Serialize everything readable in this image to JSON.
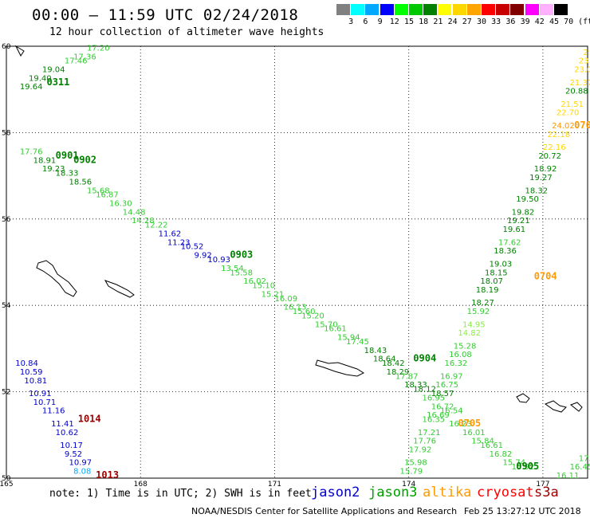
{
  "header": {
    "title": "00:00 – 11:59 UTC 02/24/2018",
    "subtitle": "12 hour collection of altimeter wave heights"
  },
  "colorbar": {
    "unit": "(ft)",
    "bins": [
      {
        "label": "3",
        "color": "#808080"
      },
      {
        "label": "6",
        "color": "#00ffff"
      },
      {
        "label": "9",
        "color": "#00a8ff"
      },
      {
        "label": "12",
        "color": "#0000ff"
      },
      {
        "label": "15",
        "color": "#00ff00"
      },
      {
        "label": "18",
        "color": "#00c800"
      },
      {
        "label": "21",
        "color": "#008000"
      },
      {
        "label": "24",
        "color": "#ffff00"
      },
      {
        "label": "27",
        "color": "#ffd700"
      },
      {
        "label": "30",
        "color": "#ffa500"
      },
      {
        "label": "33",
        "color": "#ff0000"
      },
      {
        "label": "36",
        "color": "#c80000"
      },
      {
        "label": "39",
        "color": "#800000"
      },
      {
        "label": "42",
        "color": "#ff00ff"
      },
      {
        "label": "45",
        "color": "#ffb0ff"
      },
      {
        "label": "70",
        "color": "#000000"
      }
    ]
  },
  "map": {
    "lon_range": [
      165,
      178
    ],
    "lat_range": [
      50,
      60
    ],
    "lon_ticks": [
      "165",
      "168",
      "171",
      "174",
      "177"
    ],
    "lat_ticks": [
      "60",
      "58",
      "56",
      "54",
      "52",
      "50"
    ]
  },
  "colors": {
    "jason2": "#0000cc",
    "jason3": "#00a000",
    "altika": "#ff9900",
    "cryosat": "#ff0000",
    "s3a": "#990000",
    "greenlight": "#33cc33",
    "yellow": "#ffd700",
    "cyan": "#00a8ff"
  },
  "passes": [
    {
      "id": "0311",
      "color": "#008000",
      "lon": 165.9,
      "lat": 59.1
    },
    {
      "id": "0901",
      "color": "#008000",
      "lon": 166.1,
      "lat": 57.4
    },
    {
      "id": "0902",
      "color": "#008000",
      "lon": 166.5,
      "lat": 57.3
    },
    {
      "id": "0903",
      "color": "#008000",
      "lon": 170.0,
      "lat": 55.1
    },
    {
      "id": "0904",
      "color": "#008000",
      "lon": 174.1,
      "lat": 52.7
    },
    {
      "id": "0705",
      "color": "#ff9900",
      "lon": 175.1,
      "lat": 51.2
    },
    {
      "id": "0905",
      "color": "#008000",
      "lon": 176.4,
      "lat": 50.2
    },
    {
      "id": "0704",
      "color": "#ff9900",
      "lon": 176.8,
      "lat": 54.6
    },
    {
      "id": "070",
      "color": "#ff9900",
      "lon": 177.7,
      "lat": 58.1
    },
    {
      "id": "1014",
      "color": "#990000",
      "lon": 166.6,
      "lat": 51.3
    },
    {
      "id": "1013",
      "color": "#990000",
      "lon": 167.0,
      "lat": 50.0
    }
  ],
  "observations": [
    {
      "v": "17.20",
      "lon": 166.8,
      "lat": 59.9,
      "c": "#33cc33"
    },
    {
      "v": "17.36",
      "lon": 166.5,
      "lat": 59.7,
      "c": "#33cc33"
    },
    {
      "v": "17.46",
      "lon": 166.3,
      "lat": 59.6,
      "c": "#33cc33"
    },
    {
      "v": "19.04",
      "lon": 165.8,
      "lat": 59.4,
      "c": "#008000"
    },
    {
      "v": "19.40",
      "lon": 165.5,
      "lat": 59.2,
      "c": "#008000"
    },
    {
      "v": "19.64",
      "lon": 165.3,
      "lat": 59.0,
      "c": "#008000"
    },
    {
      "v": "17.76",
      "lon": 165.3,
      "lat": 57.5,
      "c": "#33cc33"
    },
    {
      "v": "18.91",
      "lon": 165.6,
      "lat": 57.3,
      "c": "#008000"
    },
    {
      "v": "19.23",
      "lon": 165.8,
      "lat": 57.1,
      "c": "#008000"
    },
    {
      "v": "18.33",
      "lon": 166.1,
      "lat": 57.0,
      "c": "#008000"
    },
    {
      "v": "18.56",
      "lon": 166.4,
      "lat": 56.8,
      "c": "#008000"
    },
    {
      "v": "15.68",
      "lon": 166.8,
      "lat": 56.6,
      "c": "#33cc33"
    },
    {
      "v": "16.87",
      "lon": 167.0,
      "lat": 56.5,
      "c": "#33cc33"
    },
    {
      "v": "16.30",
      "lon": 167.3,
      "lat": 56.3,
      "c": "#33cc33"
    },
    {
      "v": "14.48",
      "lon": 167.6,
      "lat": 56.1,
      "c": "#33cc33"
    },
    {
      "v": "14.28",
      "lon": 167.8,
      "lat": 55.9,
      "c": "#33cc33"
    },
    {
      "v": "12.22",
      "lon": 168.1,
      "lat": 55.8,
      "c": "#33cc33"
    },
    {
      "v": "11.62",
      "lon": 168.4,
      "lat": 55.6,
      "c": "#0000cc"
    },
    {
      "v": "11.23",
      "lon": 168.6,
      "lat": 55.4,
      "c": "#0000cc"
    },
    {
      "v": "10.52",
      "lon": 168.9,
      "lat": 55.3,
      "c": "#0000cc"
    },
    {
      "v": "9.92",
      "lon": 169.2,
      "lat": 55.1,
      "c": "#0000cc"
    },
    {
      "v": "10.93",
      "lon": 169.5,
      "lat": 55.0,
      "c": "#0000cc"
    },
    {
      "v": "13.54",
      "lon": 169.8,
      "lat": 54.8,
      "c": "#33cc33"
    },
    {
      "v": "15.58",
      "lon": 170.0,
      "lat": 54.7,
      "c": "#33cc33"
    },
    {
      "v": "16.02",
      "lon": 170.3,
      "lat": 54.5,
      "c": "#33cc33"
    },
    {
      "v": "15.10",
      "lon": 170.5,
      "lat": 54.4,
      "c": "#33cc33"
    },
    {
      "v": "15.21",
      "lon": 170.7,
      "lat": 54.2,
      "c": "#33cc33"
    },
    {
      "v": "16.09",
      "lon": 171.0,
      "lat": 54.1,
      "c": "#33cc33"
    },
    {
      "v": "16.13",
      "lon": 171.2,
      "lat": 53.9,
      "c": "#33cc33"
    },
    {
      "v": "15.60",
      "lon": 171.4,
      "lat": 53.8,
      "c": "#33cc33"
    },
    {
      "v": "15.20",
      "lon": 171.6,
      "lat": 53.7,
      "c": "#33cc33"
    },
    {
      "v": "15.70",
      "lon": 171.9,
      "lat": 53.5,
      "c": "#33cc33"
    },
    {
      "v": "16.61",
      "lon": 172.1,
      "lat": 53.4,
      "c": "#33cc33"
    },
    {
      "v": "15.94",
      "lon": 172.4,
      "lat": 53.2,
      "c": "#33cc33"
    },
    {
      "v": "17.45",
      "lon": 172.6,
      "lat": 53.1,
      "c": "#33cc33"
    },
    {
      "v": "18.43",
      "lon": 173.0,
      "lat": 52.9,
      "c": "#008000"
    },
    {
      "v": "18.64",
      "lon": 173.2,
      "lat": 52.7,
      "c": "#008000"
    },
    {
      "v": "18.42",
      "lon": 173.4,
      "lat": 52.6,
      "c": "#008000"
    },
    {
      "v": "18.29",
      "lon": 173.5,
      "lat": 52.4,
      "c": "#008000"
    },
    {
      "v": "17.87",
      "lon": 173.7,
      "lat": 52.3,
      "c": "#33cc33"
    },
    {
      "v": "18.33",
      "lon": 173.9,
      "lat": 52.1,
      "c": "#008000"
    },
    {
      "v": "18.12",
      "lon": 174.1,
      "lat": 52.0,
      "c": "#008000"
    },
    {
      "v": "16.95",
      "lon": 174.3,
      "lat": 51.8,
      "c": "#33cc33"
    },
    {
      "v": "16.72",
      "lon": 174.5,
      "lat": 51.6,
      "c": "#33cc33"
    },
    {
      "v": "16.54",
      "lon": 174.7,
      "lat": 51.5,
      "c": "#33cc33"
    },
    {
      "v": "16.23",
      "lon": 174.9,
      "lat": 51.2,
      "c": "#33cc33"
    },
    {
      "v": "16.01",
      "lon": 175.2,
      "lat": 51.0,
      "c": "#33cc33"
    },
    {
      "v": "15.84",
      "lon": 175.4,
      "lat": 50.8,
      "c": "#33cc33"
    },
    {
      "v": "16.61",
      "lon": 175.6,
      "lat": 50.7,
      "c": "#33cc33"
    },
    {
      "v": "16.82",
      "lon": 175.8,
      "lat": 50.5,
      "c": "#33cc33"
    },
    {
      "v": "15.74",
      "lon": 176.1,
      "lat": 50.3,
      "c": "#33cc33"
    },
    {
      "v": "15.92",
      "lon": 176.3,
      "lat": 50.2,
      "c": "#33cc33"
    },
    {
      "v": "15.79",
      "lon": 173.8,
      "lat": 50.1,
      "c": "#33cc33"
    },
    {
      "v": "15.98",
      "lon": 173.9,
      "lat": 50.3,
      "c": "#33cc33"
    },
    {
      "v": "17.92",
      "lon": 174.0,
      "lat": 50.6,
      "c": "#33cc33"
    },
    {
      "v": "17.76",
      "lon": 174.1,
      "lat": 50.8,
      "c": "#33cc33"
    },
    {
      "v": "17.21",
      "lon": 174.2,
      "lat": 51.0,
      "c": "#33cc33"
    },
    {
      "v": "16.35",
      "lon": 174.3,
      "lat": 51.3,
      "c": "#33cc33"
    },
    {
      "v": "16.69",
      "lon": 174.4,
      "lat": 51.4,
      "c": "#33cc33"
    },
    {
      "v": "18.57",
      "lon": 174.5,
      "lat": 51.9,
      "c": "#008000"
    },
    {
      "v": "16.75",
      "lon": 174.6,
      "lat": 52.1,
      "c": "#33cc33"
    },
    {
      "v": "16.97",
      "lon": 174.7,
      "lat": 52.3,
      "c": "#33cc33"
    },
    {
      "v": "16.32",
      "lon": 174.8,
      "lat": 52.6,
      "c": "#33cc33"
    },
    {
      "v": "16.08",
      "lon": 174.9,
      "lat": 52.8,
      "c": "#33cc33"
    },
    {
      "v": "15.28",
      "lon": 175.0,
      "lat": 53.0,
      "c": "#33cc33"
    },
    {
      "v": "14.82",
      "lon": 175.1,
      "lat": 53.3,
      "c": "#88ee44"
    },
    {
      "v": "14.95",
      "lon": 175.2,
      "lat": 53.5,
      "c": "#88ee44"
    },
    {
      "v": "15.92",
      "lon": 175.3,
      "lat": 53.8,
      "c": "#33cc33"
    },
    {
      "v": "18.27",
      "lon": 175.4,
      "lat": 54.0,
      "c": "#008000"
    },
    {
      "v": "18.19",
      "lon": 175.5,
      "lat": 54.3,
      "c": "#008000"
    },
    {
      "v": "18.07",
      "lon": 175.6,
      "lat": 54.5,
      "c": "#008000"
    },
    {
      "v": "18.15",
      "lon": 175.7,
      "lat": 54.7,
      "c": "#008000"
    },
    {
      "v": "19.03",
      "lon": 175.8,
      "lat": 54.9,
      "c": "#008000"
    },
    {
      "v": "18.36",
      "lon": 175.9,
      "lat": 55.2,
      "c": "#008000"
    },
    {
      "v": "17.62",
      "lon": 176.0,
      "lat": 55.4,
      "c": "#33cc33"
    },
    {
      "v": "19.61",
      "lon": 176.1,
      "lat": 55.7,
      "c": "#008000"
    },
    {
      "v": "19.21",
      "lon": 176.2,
      "lat": 55.9,
      "c": "#008000"
    },
    {
      "v": "19.82",
      "lon": 176.3,
      "lat": 56.1,
      "c": "#008000"
    },
    {
      "v": "19.50",
      "lon": 176.4,
      "lat": 56.4,
      "c": "#008000"
    },
    {
      "v": "18.32",
      "lon": 176.6,
      "lat": 56.6,
      "c": "#008000"
    },
    {
      "v": "19.27",
      "lon": 176.7,
      "lat": 56.9,
      "c": "#008000"
    },
    {
      "v": "18.92",
      "lon": 176.8,
      "lat": 57.1,
      "c": "#008000"
    },
    {
      "v": "20.72",
      "lon": 176.9,
      "lat": 57.4,
      "c": "#008000"
    },
    {
      "v": "22.16",
      "lon": 177.0,
      "lat": 57.6,
      "c": "#ffd700"
    },
    {
      "v": "22.18",
      "lon": 177.1,
      "lat": 57.9,
      "c": "#ffd700"
    },
    {
      "v": "24.02",
      "lon": 177.2,
      "lat": 58.1,
      "c": "#ff9900"
    },
    {
      "v": "22.70",
      "lon": 177.3,
      "lat": 58.4,
      "c": "#ffd700"
    },
    {
      "v": "21.51",
      "lon": 177.4,
      "lat": 58.6,
      "c": "#ffd700"
    },
    {
      "v": "20.88",
      "lon": 177.5,
      "lat": 58.9,
      "c": "#008000"
    },
    {
      "v": "21.37",
      "lon": 177.6,
      "lat": 59.1,
      "c": "#ffd700"
    },
    {
      "v": "23.0",
      "lon": 177.7,
      "lat": 59.4,
      "c": "#ffd700"
    },
    {
      "v": "23.",
      "lon": 177.8,
      "lat": 59.6,
      "c": "#ffd700"
    },
    {
      "v": "2",
      "lon": 177.9,
      "lat": 59.8,
      "c": "#ffd700"
    },
    {
      "v": "10.84",
      "lon": 165.2,
      "lat": 52.6,
      "c": "#0000cc"
    },
    {
      "v": "10.59",
      "lon": 165.3,
      "lat": 52.4,
      "c": "#0000cc"
    },
    {
      "v": "10.81",
      "lon": 165.4,
      "lat": 52.2,
      "c": "#0000cc"
    },
    {
      "v": "10.91",
      "lon": 165.5,
      "lat": 51.9,
      "c": "#0000cc"
    },
    {
      "v": "10.71",
      "lon": 165.6,
      "lat": 51.7,
      "c": "#0000cc"
    },
    {
      "v": "11.16",
      "lon": 165.8,
      "lat": 51.5,
      "c": "#0000cc"
    },
    {
      "v": "11.41",
      "lon": 166.0,
      "lat": 51.2,
      "c": "#0000cc"
    },
    {
      "v": "10.62",
      "lon": 166.1,
      "lat": 51.0,
      "c": "#0000cc"
    },
    {
      "v": "10.17",
      "lon": 166.2,
      "lat": 50.7,
      "c": "#0000cc"
    },
    {
      "v": "9.52",
      "lon": 166.3,
      "lat": 50.5,
      "c": "#0000cc"
    },
    {
      "v": "10.97",
      "lon": 166.4,
      "lat": 50.3,
      "c": "#0000cc"
    },
    {
      "v": "8.08",
      "lon": 166.5,
      "lat": 50.1,
      "c": "#00a8ff"
    },
    {
      "v": "16.11",
      "lon": 177.3,
      "lat": 50.0,
      "c": "#33cc33"
    },
    {
      "v": "16.45",
      "lon": 177.6,
      "lat": 50.2,
      "c": "#33cc33"
    },
    {
      "v": "17.8",
      "lon": 177.8,
      "lat": 50.4,
      "c": "#33cc33"
    }
  ],
  "footer": {
    "note": "note: 1) Time is in UTC; 2) SWH is in feet",
    "satellites": [
      {
        "name": "jason2",
        "color": "#0000cc"
      },
      {
        "name": "jason3",
        "color": "#00a000"
      },
      {
        "name": "altika",
        "color": "#ff9900"
      },
      {
        "name": "cryosat",
        "color": "#ff0000"
      },
      {
        "name": "s3a",
        "color": "#990000"
      }
    ],
    "credit": "NOAA/NESDIS Center for Satellite Applications and Research",
    "timestamp": "Feb 25 13:27:12 UTC 2018"
  }
}
